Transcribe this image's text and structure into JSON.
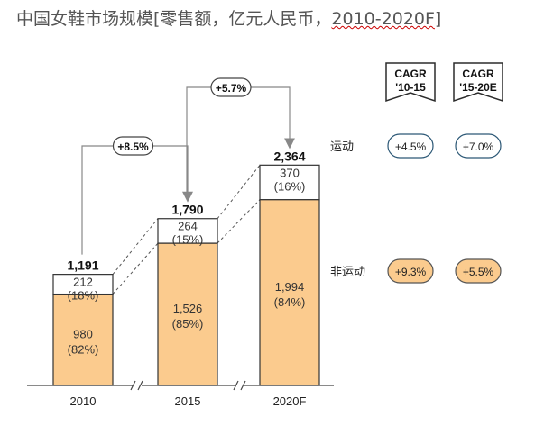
{
  "title": "中国女鞋市场规模[零售额，亿元人民币，",
  "title_years": "2010-2020F",
  "title_close": "]",
  "colors": {
    "non_sport": "#FBCB8E",
    "sport": "#FFFFFF",
    "border": "#333333",
    "arrow": "#888888",
    "badge_sport_border": "#2C5876"
  },
  "chart_data": {
    "type": "bar",
    "stacked": true,
    "categories": [
      "2010",
      "2015",
      "2020F"
    ],
    "series": [
      {
        "name": "非运动",
        "values": [
          980,
          1526,
          1994
        ],
        "shares": [
          "(82%)",
          "(85%)",
          "(84%)"
        ]
      },
      {
        "name": "运动",
        "values": [
          212,
          264,
          370
        ],
        "shares": [
          "(18%)",
          "(15%)",
          "(16%)"
        ]
      }
    ],
    "totals": [
      "1,191",
      "1,790",
      "2,364"
    ],
    "value_labels": {
      "non_sport": [
        "980",
        "1,526",
        "1,994"
      ],
      "sport": [
        "212",
        "264",
        "370"
      ]
    },
    "growth_arrows": [
      {
        "from": "2010",
        "to": "2015",
        "label": "+8.5%"
      },
      {
        "from": "2015",
        "to": "2020F",
        "label": "+5.7%"
      }
    ],
    "cagr_headers": [
      {
        "line1": "CAGR",
        "line2": "'10-15"
      },
      {
        "line1": "CAGR",
        "line2": "'15-20E"
      }
    ],
    "cagr_rows": [
      {
        "label": "运动",
        "values": [
          "+4.5%",
          "+7.0%"
        ]
      },
      {
        "label": "非运动",
        "values": [
          "+9.3%",
          "+5.5%"
        ]
      }
    ]
  }
}
